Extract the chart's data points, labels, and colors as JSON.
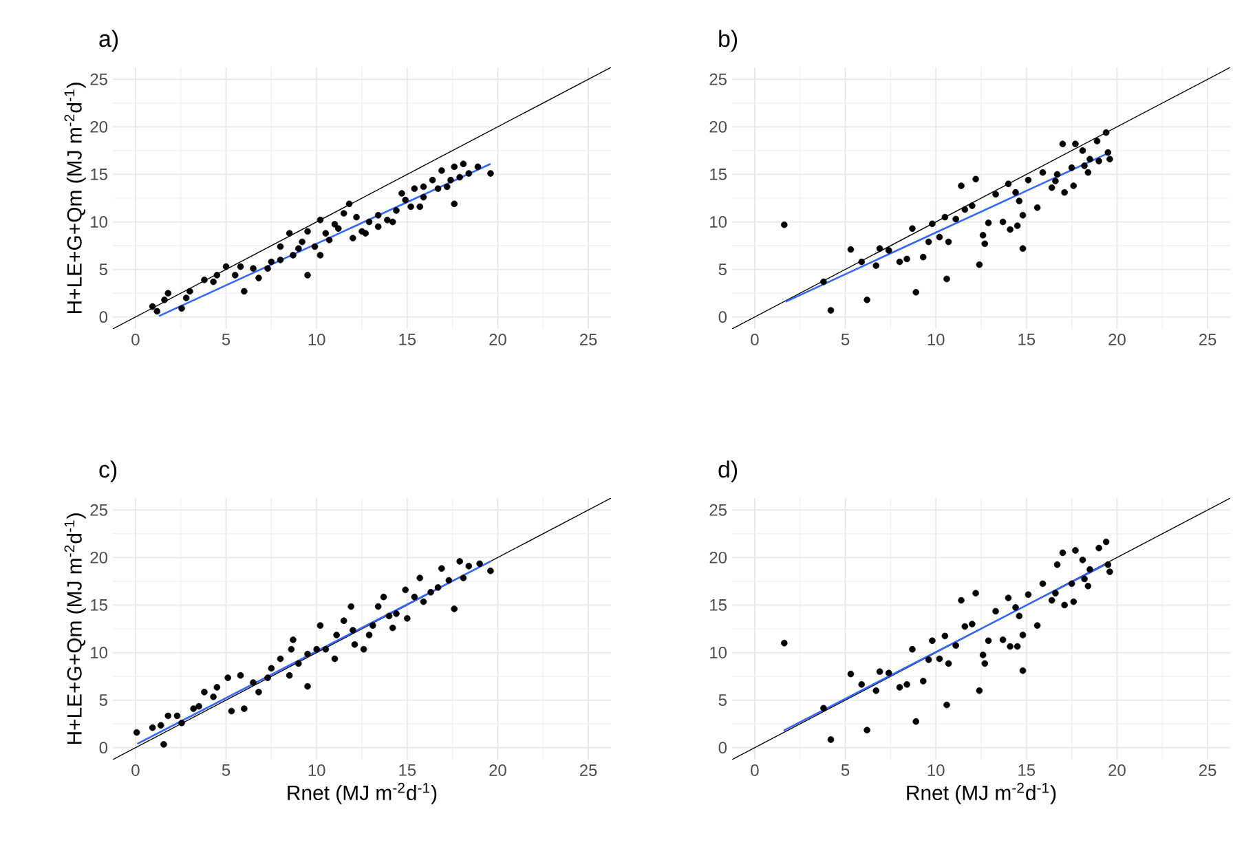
{
  "chart_data": [
    {
      "type": "scatter",
      "title": "a)",
      "ylabel": "H+LE+G+Qm (MJ m$^{-2}$d$^{-1}$)",
      "xlim": [
        -1.25,
        26.25
      ],
      "ylim": [
        -1.25,
        26.25
      ],
      "xticks": [
        0,
        5,
        10,
        15,
        20,
        25
      ],
      "yticks": [
        0,
        5,
        10,
        15,
        20,
        25
      ],
      "grid": true,
      "series": [
        {
          "marker": "circle",
          "color": "#000000",
          "x": [
            0.94,
            1.19,
            1.8,
            2.55,
            2.8,
            3.8,
            4.5,
            5.0,
            5.8,
            6.0,
            6.8,
            7.3,
            8.0,
            8.5,
            8.7,
            9.5,
            9.5,
            10.2,
            10.2,
            10.7,
            11.0,
            11.5,
            11.8,
            12.0,
            12.5,
            12.9,
            13.4,
            13.9,
            14.4,
            14.7,
            15.2,
            15.4,
            15.9,
            16.4,
            16.9,
            17.2,
            17.6,
            17.6,
            18.1,
            17.9,
            18.9,
            19.6,
            1.6,
            3.0,
            4.3,
            5.5,
            6.5,
            7.5,
            8.0,
            9.0,
            9.2,
            9.9,
            10.5,
            11.2,
            12.2,
            12.7,
            13.4,
            14.2,
            14.9,
            15.7,
            15.9,
            16.7,
            17.4,
            18.4
          ],
          "values": [
            1.1,
            0.6,
            2.5,
            0.9,
            2.0,
            3.9,
            4.4,
            5.3,
            5.3,
            2.7,
            4.1,
            5.1,
            6.0,
            8.8,
            6.5,
            4.4,
            9.0,
            10.2,
            6.5,
            8.1,
            9.75,
            10.9,
            11.9,
            8.3,
            9.0,
            10.0,
            9.5,
            10.2,
            11.2,
            13.0,
            11.6,
            13.5,
            12.6,
            14.4,
            15.4,
            13.7,
            11.9,
            15.8,
            16.1,
            14.7,
            15.8,
            15.1,
            1.8,
            2.7,
            3.7,
            4.4,
            5.1,
            5.8,
            7.4,
            7.2,
            7.9,
            7.4,
            8.8,
            9.3,
            10.5,
            8.8,
            10.7,
            10.0,
            12.3,
            11.6,
            13.7,
            13.5,
            14.4,
            15.1
          ]
        },
        {
          "type": "line",
          "color": "#000000",
          "x": [
            -1.25,
            26.25
          ],
          "values": [
            -1.25,
            26.25
          ]
        },
        {
          "type": "line",
          "marker": "none",
          "color": "#3366ff",
          "x": [
            1.3,
            19.6
          ],
          "values": [
            0.1,
            16.1
          ]
        }
      ]
    },
    {
      "type": "scatter",
      "title": "b)",
      "xlim": [
        -1.25,
        26.25
      ],
      "ylim": [
        -1.25,
        26.25
      ],
      "xticks": [
        0,
        5,
        10,
        15,
        20,
        25
      ],
      "yticks": [
        0,
        5,
        10,
        15,
        20,
        25
      ],
      "grid": true,
      "series": [
        {
          "marker": "circle",
          "color": "#000000",
          "x": [
            1.63,
            4.2,
            3.8,
            5.3,
            5.9,
            6.2,
            6.7,
            6.9,
            7.4,
            8.0,
            8.4,
            8.7,
            8.9,
            9.3,
            9.6,
            9.8,
            10.2,
            10.5,
            10.6,
            10.7,
            11.1,
            11.4,
            11.6,
            12.0,
            12.2,
            12.4,
            12.6,
            12.7,
            12.9,
            13.3,
            13.7,
            14.0,
            14.1,
            14.4,
            14.5,
            14.6,
            14.8,
            14.8,
            15.1,
            15.6,
            15.9,
            16.4,
            16.7,
            17.0,
            17.1,
            17.5,
            17.6,
            17.7,
            18.1,
            18.2,
            18.5,
            18.9,
            19.0,
            19.4,
            19.5,
            19.6,
            16.6,
            18.4
          ],
          "values": [
            9.7,
            0.7,
            3.7,
            7.1,
            5.8,
            1.8,
            5.4,
            7.2,
            7.0,
            5.8,
            6.1,
            9.3,
            2.6,
            6.3,
            7.9,
            9.8,
            8.4,
            10.5,
            4.0,
            7.9,
            10.3,
            13.8,
            11.3,
            11.7,
            14.5,
            5.5,
            8.6,
            7.7,
            9.9,
            12.9,
            10.0,
            14.0,
            9.2,
            13.1,
            9.6,
            12.2,
            7.2,
            10.7,
            14.4,
            11.5,
            15.2,
            13.6,
            15.0,
            18.2,
            13.1,
            15.7,
            13.8,
            18.2,
            17.5,
            15.9,
            16.6,
            18.5,
            16.4,
            19.4,
            17.3,
            16.6,
            14.3,
            15.2
          ]
        },
        {
          "type": "line",
          "color": "#000000",
          "x": [
            -1.25,
            26.25
          ],
          "values": [
            -1.25,
            26.25
          ]
        },
        {
          "type": "line",
          "marker": "none",
          "color": "#3366ff",
          "x": [
            1.7,
            19.6
          ],
          "values": [
            1.6,
            17.3
          ]
        }
      ]
    },
    {
      "type": "scatter",
      "title": "c)",
      "xlabel": "Rnet (MJ m$^{-2}$d$^{-1}$)",
      "ylabel": "H+LE+G+Qm (MJ m$^{-2}$d$^{-1}$)",
      "xlim": [
        -1.25,
        26.25
      ],
      "ylim": [
        -1.25,
        26.25
      ],
      "xticks": [
        0,
        5,
        10,
        15,
        20,
        25
      ],
      "yticks": [
        0,
        5,
        10,
        15,
        20,
        25
      ],
      "grid": true,
      "series": [
        {
          "marker": "circle",
          "color": "#000000",
          "x": [
            0.07,
            0.94,
            1.56,
            1.8,
            2.55,
            3.2,
            3.8,
            4.5,
            5.1,
            5.3,
            5.8,
            6.0,
            6.8,
            7.3,
            8.0,
            8.5,
            8.7,
            8.6,
            9.5,
            9.5,
            10.2,
            10.5,
            11.0,
            11.1,
            11.5,
            11.9,
            12.1,
            12.6,
            13.1,
            13.4,
            13.7,
            14.2,
            14.4,
            14.9,
            15.0,
            15.7,
            15.9,
            16.3,
            16.9,
            17.3,
            17.6,
            17.9,
            18.1,
            18.4,
            19.0,
            19.6,
            1.4,
            2.3,
            3.5,
            4.3,
            6.5,
            7.5,
            9.0,
            10.0,
            12.0,
            12.9,
            14.0,
            15.4,
            16.7
          ],
          "values": [
            1.6,
            2.1,
            0.35,
            3.35,
            2.6,
            4.1,
            5.85,
            6.35,
            7.35,
            3.85,
            7.6,
            4.1,
            5.85,
            7.35,
            9.35,
            7.6,
            11.35,
            10.35,
            6.45,
            9.85,
            12.85,
            10.35,
            9.35,
            11.85,
            13.35,
            14.85,
            10.85,
            10.35,
            12.85,
            14.85,
            15.85,
            12.6,
            14.1,
            16.6,
            13.6,
            17.85,
            15.35,
            16.35,
            18.85,
            17.6,
            14.6,
            19.6,
            17.85,
            19.1,
            19.35,
            18.6,
            2.35,
            3.35,
            4.35,
            5.35,
            6.85,
            8.35,
            8.85,
            10.35,
            12.35,
            11.85,
            13.85,
            15.85,
            16.85
          ]
        },
        {
          "type": "line",
          "color": "#000000",
          "x": [
            -1.25,
            26.25
          ],
          "values": [
            -1.25,
            26.25
          ]
        },
        {
          "type": "line",
          "marker": "none",
          "color": "#3366ff",
          "x": [
            0.1,
            19.6
          ],
          "values": [
            0.4,
            19.6
          ]
        }
      ]
    },
    {
      "type": "scatter",
      "title": "d)",
      "xlabel": "Rnet (MJ m$^{-2}$d$^{-1}$)",
      "xlim": [
        -1.25,
        26.25
      ],
      "ylim": [
        -1.25,
        26.25
      ],
      "xticks": [
        0,
        5,
        10,
        15,
        20,
        25
      ],
      "yticks": [
        0,
        5,
        10,
        15,
        20,
        25
      ],
      "grid": true,
      "series": [
        {
          "marker": "circle",
          "color": "#000000",
          "x": [
            1.63,
            4.2,
            3.8,
            5.3,
            5.9,
            6.2,
            6.7,
            6.9,
            7.4,
            8.0,
            8.4,
            8.7,
            8.9,
            9.3,
            9.6,
            9.8,
            10.2,
            10.5,
            10.6,
            10.7,
            11.1,
            11.4,
            11.6,
            12.0,
            12.2,
            12.4,
            12.6,
            12.7,
            12.9,
            13.3,
            13.7,
            14.0,
            14.1,
            14.4,
            14.5,
            14.6,
            14.8,
            14.8,
            15.1,
            15.6,
            15.9,
            16.4,
            16.7,
            17.0,
            17.1,
            17.5,
            17.6,
            17.7,
            18.1,
            18.2,
            18.4,
            18.5,
            19.0,
            19.4,
            19.5,
            19.6,
            16.6
          ],
          "values": [
            11.0,
            0.85,
            4.15,
            7.75,
            6.65,
            1.85,
            6.0,
            8.0,
            7.85,
            6.35,
            6.65,
            10.35,
            2.75,
            7.0,
            9.25,
            11.25,
            9.35,
            11.75,
            4.5,
            8.85,
            10.75,
            15.5,
            12.75,
            13.0,
            16.25,
            6.0,
            9.75,
            8.85,
            11.25,
            14.35,
            11.35,
            15.75,
            10.65,
            14.75,
            10.65,
            13.85,
            8.1,
            11.85,
            16.1,
            12.85,
            17.25,
            15.5,
            19.25,
            20.5,
            15.0,
            17.25,
            15.35,
            20.75,
            19.75,
            17.75,
            17.0,
            18.75,
            21.0,
            21.65,
            19.25,
            18.5,
            16.25
          ]
        },
        {
          "type": "line",
          "color": "#000000",
          "x": [
            -1.25,
            26.25
          ],
          "values": [
            -1.25,
            26.25
          ]
        },
        {
          "type": "line",
          "marker": "none",
          "color": "#3366ff",
          "x": [
            1.6,
            19.6
          ],
          "values": [
            1.8,
            19.5
          ]
        }
      ]
    }
  ]
}
